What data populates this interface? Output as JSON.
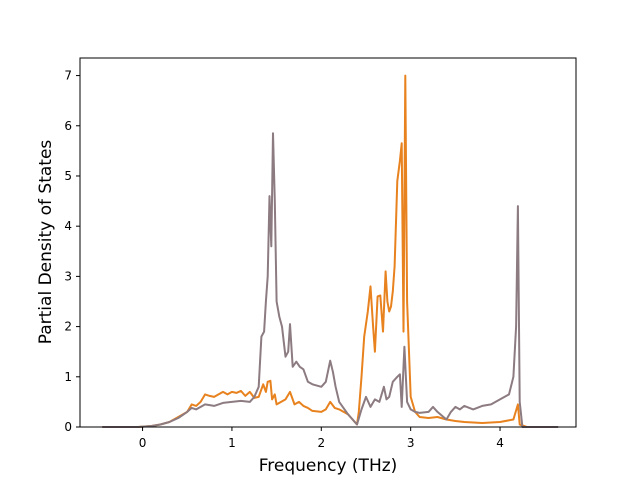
{
  "chart_data": {
    "type": "line",
    "title": "",
    "xlabel": "Frequency (THz)",
    "ylabel": "Partial Density of States",
    "xlim": [
      -0.7,
      4.85
    ],
    "ylim": [
      0,
      7.35
    ],
    "xticks": [
      0,
      1,
      2,
      3,
      4
    ],
    "yticks": [
      0,
      1,
      2,
      3,
      4,
      5,
      6,
      7
    ],
    "grid": false,
    "legend": "none",
    "series": [
      {
        "color": "#e8821e",
        "points": [
          [
            -0.45,
            0
          ],
          [
            -0.05,
            0
          ],
          [
            0.1,
            0.02
          ],
          [
            0.2,
            0.05
          ],
          [
            0.3,
            0.1
          ],
          [
            0.4,
            0.2
          ],
          [
            0.5,
            0.3
          ],
          [
            0.55,
            0.45
          ],
          [
            0.6,
            0.42
          ],
          [
            0.65,
            0.5
          ],
          [
            0.7,
            0.65
          ],
          [
            0.75,
            0.62
          ],
          [
            0.8,
            0.6
          ],
          [
            0.85,
            0.65
          ],
          [
            0.9,
            0.7
          ],
          [
            0.95,
            0.65
          ],
          [
            1.0,
            0.7
          ],
          [
            1.05,
            0.68
          ],
          [
            1.1,
            0.72
          ],
          [
            1.15,
            0.62
          ],
          [
            1.2,
            0.7
          ],
          [
            1.25,
            0.58
          ],
          [
            1.3,
            0.6
          ],
          [
            1.35,
            0.85
          ],
          [
            1.38,
            0.7
          ],
          [
            1.4,
            0.9
          ],
          [
            1.43,
            0.92
          ],
          [
            1.45,
            0.55
          ],
          [
            1.48,
            0.65
          ],
          [
            1.5,
            0.45
          ],
          [
            1.55,
            0.5
          ],
          [
            1.6,
            0.55
          ],
          [
            1.65,
            0.7
          ],
          [
            1.7,
            0.45
          ],
          [
            1.75,
            0.5
          ],
          [
            1.8,
            0.42
          ],
          [
            1.85,
            0.38
          ],
          [
            1.9,
            0.32
          ],
          [
            2.0,
            0.3
          ],
          [
            2.05,
            0.35
          ],
          [
            2.1,
            0.5
          ],
          [
            2.15,
            0.38
          ],
          [
            2.2,
            0.35
          ],
          [
            2.3,
            0.25
          ],
          [
            2.35,
            0.15
          ],
          [
            2.4,
            0.05
          ],
          [
            2.42,
            0.3
          ],
          [
            2.45,
            1.0
          ],
          [
            2.48,
            1.8
          ],
          [
            2.52,
            2.3
          ],
          [
            2.55,
            2.8
          ],
          [
            2.58,
            2.0
          ],
          [
            2.6,
            1.5
          ],
          [
            2.63,
            2.6
          ],
          [
            2.66,
            2.62
          ],
          [
            2.69,
            1.9
          ],
          [
            2.72,
            3.1
          ],
          [
            2.74,
            2.5
          ],
          [
            2.76,
            2.3
          ],
          [
            2.78,
            2.4
          ],
          [
            2.8,
            2.7
          ],
          [
            2.82,
            3.2
          ],
          [
            2.85,
            4.9
          ],
          [
            2.88,
            5.3
          ],
          [
            2.9,
            5.65
          ],
          [
            2.92,
            1.9
          ],
          [
            2.94,
            7.0
          ],
          [
            2.96,
            2.5
          ],
          [
            3.0,
            0.6
          ],
          [
            3.05,
            0.3
          ],
          [
            3.1,
            0.2
          ],
          [
            3.2,
            0.18
          ],
          [
            3.3,
            0.2
          ],
          [
            3.4,
            0.15
          ],
          [
            3.5,
            0.12
          ],
          [
            3.6,
            0.1
          ],
          [
            3.8,
            0.08
          ],
          [
            4.0,
            0.1
          ],
          [
            4.15,
            0.15
          ],
          [
            4.2,
            0.45
          ],
          [
            4.22,
            0.05
          ],
          [
            4.3,
            0
          ],
          [
            4.65,
            0
          ]
        ]
      },
      {
        "color": "#8c7b80",
        "points": [
          [
            -0.45,
            0
          ],
          [
            -0.05,
            0
          ],
          [
            0.1,
            0.02
          ],
          [
            0.2,
            0.05
          ],
          [
            0.3,
            0.1
          ],
          [
            0.4,
            0.18
          ],
          [
            0.5,
            0.3
          ],
          [
            0.55,
            0.38
          ],
          [
            0.6,
            0.35
          ],
          [
            0.7,
            0.45
          ],
          [
            0.8,
            0.42
          ],
          [
            0.9,
            0.48
          ],
          [
            1.0,
            0.5
          ],
          [
            1.1,
            0.52
          ],
          [
            1.2,
            0.5
          ],
          [
            1.25,
            0.6
          ],
          [
            1.3,
            0.8
          ],
          [
            1.33,
            1.8
          ],
          [
            1.36,
            1.9
          ],
          [
            1.38,
            2.5
          ],
          [
            1.4,
            3.0
          ],
          [
            1.42,
            4.6
          ],
          [
            1.44,
            3.6
          ],
          [
            1.46,
            5.85
          ],
          [
            1.48,
            4.5
          ],
          [
            1.5,
            2.5
          ],
          [
            1.53,
            2.2
          ],
          [
            1.56,
            2.0
          ],
          [
            1.6,
            1.4
          ],
          [
            1.63,
            1.5
          ],
          [
            1.65,
            2.05
          ],
          [
            1.68,
            1.2
          ],
          [
            1.72,
            1.3
          ],
          [
            1.76,
            1.2
          ],
          [
            1.8,
            1.15
          ],
          [
            1.85,
            0.9
          ],
          [
            1.9,
            0.85
          ],
          [
            2.0,
            0.8
          ],
          [
            2.05,
            0.9
          ],
          [
            2.1,
            1.32
          ],
          [
            2.13,
            1.1
          ],
          [
            2.16,
            0.8
          ],
          [
            2.2,
            0.5
          ],
          [
            2.3,
            0.25
          ],
          [
            2.35,
            0.15
          ],
          [
            2.4,
            0.05
          ],
          [
            2.45,
            0.35
          ],
          [
            2.5,
            0.6
          ],
          [
            2.55,
            0.4
          ],
          [
            2.6,
            0.55
          ],
          [
            2.65,
            0.5
          ],
          [
            2.7,
            0.8
          ],
          [
            2.73,
            0.55
          ],
          [
            2.76,
            0.6
          ],
          [
            2.8,
            0.9
          ],
          [
            2.85,
            1.0
          ],
          [
            2.88,
            1.05
          ],
          [
            2.9,
            0.4
          ],
          [
            2.93,
            1.6
          ],
          [
            2.96,
            0.5
          ],
          [
            3.0,
            0.35
          ],
          [
            3.05,
            0.3
          ],
          [
            3.1,
            0.28
          ],
          [
            3.2,
            0.3
          ],
          [
            3.25,
            0.4
          ],
          [
            3.3,
            0.3
          ],
          [
            3.4,
            0.15
          ],
          [
            3.45,
            0.3
          ],
          [
            3.5,
            0.4
          ],
          [
            3.55,
            0.35
          ],
          [
            3.6,
            0.42
          ],
          [
            3.7,
            0.35
          ],
          [
            3.8,
            0.42
          ],
          [
            3.9,
            0.45
          ],
          [
            4.0,
            0.55
          ],
          [
            4.1,
            0.65
          ],
          [
            4.15,
            1.0
          ],
          [
            4.18,
            2.0
          ],
          [
            4.2,
            4.4
          ],
          [
            4.22,
            0.5
          ],
          [
            4.25,
            0
          ],
          [
            4.65,
            0
          ]
        ]
      }
    ]
  }
}
